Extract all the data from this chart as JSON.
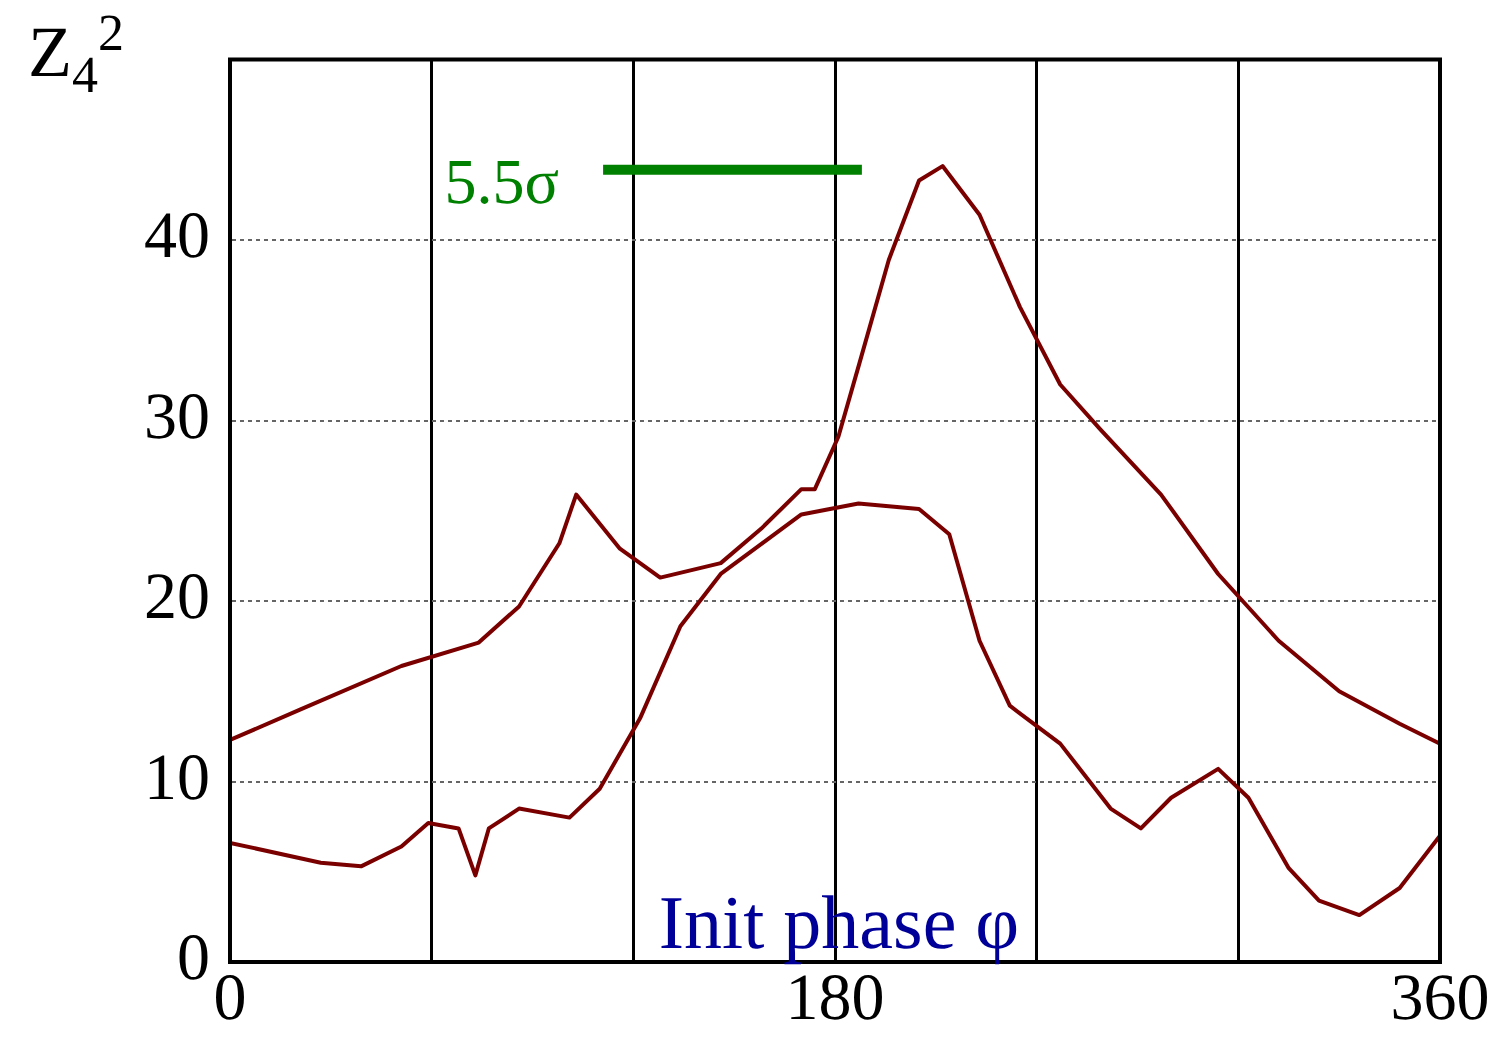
{
  "chart_data": {
    "type": "line",
    "ylabel": "Z$_{4}$$^{2}$",
    "xlabel": "Init phase φ",
    "xlim": [
      0,
      360
    ],
    "xticks": [
      0,
      {
        "value": 60,
        "label": null
      },
      {
        "value": 120,
        "label": null
      },
      180,
      {
        "value": 240,
        "label": null
      },
      {
        "value": 300,
        "label": null
      },
      360
    ],
    "ylim": [
      0,
      50
    ],
    "yticks": [
      0,
      10,
      20,
      30,
      40,
      {
        "value": 50,
        "label": null
      }
    ],
    "grid": true,
    "legend": false,
    "marker": "none",
    "series": [
      {
        "type": "line",
        "color": "#7a0000",
        "x": [
          0,
          27,
          39,
          51,
          59,
          68,
          73,
          77,
          86,
          101,
          110,
          122,
          134,
          146,
          170,
          187,
          205,
          214,
          223,
          232,
          247,
          262,
          271,
          280,
          294,
          303,
          315,
          324,
          336,
          348,
          360
        ],
        "values": [
          6.6,
          5.5,
          5.3,
          6.4,
          7.7,
          7.4,
          4.8,
          7.4,
          8.5,
          8,
          9.6,
          13.5,
          18.6,
          21.5,
          24.8,
          25.4,
          25.1,
          23.7,
          17.8,
          14.2,
          12.1,
          8.5,
          7.4,
          9.1,
          10.7,
          9.1,
          5.2,
          3.4,
          2.6,
          4.1,
          7
        ]
      },
      {
        "color": "#7a0000",
        "x": [
          0,
          21,
          51,
          74,
          86,
          98,
          103,
          116,
          128,
          146,
          158,
          170,
          174,
          181,
          187,
          196,
          205,
          212,
          223,
          235,
          247,
          259,
          277,
          294,
          312,
          330,
          348,
          360
        ],
        "values": [
          12.3,
          14,
          16.4,
          17.7,
          19.7,
          23.2,
          25.9,
          22.9,
          21.3,
          22.1,
          24,
          26.2,
          26.2,
          29.1,
          33,
          38.9,
          43.3,
          44.1,
          41.4,
          36.3,
          32,
          29.5,
          25.9,
          21.5,
          17.8,
          15,
          13.2,
          12.1
        ]
      },
      {
        "type": "line",
        "name": "5.5σ",
        "color": "#008000",
        "x": [
          111,
          188
        ],
        "values": [
          43.9,
          43.9
        ]
      }
    ]
  }
}
